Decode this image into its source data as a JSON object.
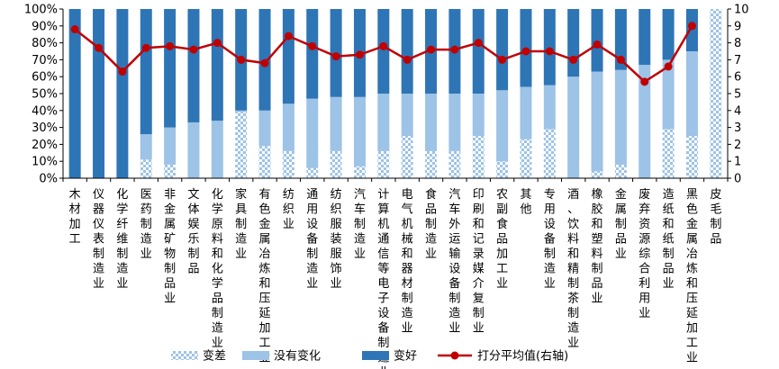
{
  "chart_data": {
    "type": "bar",
    "stacked": true,
    "y_left": {
      "ticks": [
        "0%",
        "10%",
        "20%",
        "30%",
        "40%",
        "50%",
        "60%",
        "70%",
        "80%",
        "90%",
        "100%"
      ],
      "lim": [
        0,
        100
      ]
    },
    "y_right": {
      "ticks": [
        "0",
        "1",
        "2",
        "3",
        "4",
        "5",
        "6",
        "7",
        "8",
        "9",
        "10"
      ],
      "lim": [
        0,
        10
      ]
    },
    "categories": [
      "木材加工",
      "仪器仪表制造业",
      "化学纤维制造业",
      "医药制造业",
      "非金属矿物制品业",
      "文体娱乐制品",
      "化学原料和化学品制造业",
      "家具制造业",
      "有色金属冶炼和压延加工业",
      "纺织业",
      "通用设备制造业",
      "纺织服装服饰业",
      "汽车制造业",
      "计算机通信等电子设备制造业",
      "电气机械和器材制造业",
      "食品制造业",
      "汽车外运输设备制造业",
      "印刷和记录媒介复制业",
      "农副食品加工业",
      "其他",
      "专用设备制造业",
      "酒、饮料和精制茶制造业",
      "橡胶和塑料制品业",
      "金属制品业",
      "废弃资源综合利用业",
      "造纸和纸制品业",
      "黑色金属冶炼和压延加工业",
      "皮毛制品"
    ],
    "series": [
      {
        "name": "变差",
        "color": "#9dc3e6",
        "pattern": "checker",
        "values": [
          0,
          0,
          0,
          11,
          8,
          0,
          0,
          39,
          19,
          16,
          6,
          16,
          7,
          16,
          25,
          16,
          16,
          25,
          10,
          23,
          29,
          0,
          4,
          8,
          0,
          29,
          25,
          100
        ]
      },
      {
        "name": "没有变化",
        "color": "#9dc3e6",
        "values": [
          0,
          0,
          0,
          15,
          22,
          33,
          34,
          1,
          21,
          28,
          41,
          32,
          41,
          34,
          25,
          34,
          34,
          25,
          42,
          31,
          26,
          60,
          59,
          56,
          67,
          41,
          50,
          0
        ]
      },
      {
        "name": "变好",
        "color": "#2e75b6",
        "values": [
          100,
          100,
          100,
          74,
          70,
          67,
          66,
          60,
          60,
          56,
          53,
          52,
          52,
          50,
          50,
          50,
          50,
          50,
          48,
          46,
          45,
          40,
          37,
          36,
          33,
          30,
          25,
          0
        ]
      }
    ],
    "line": {
      "name": "打分平均值(右轴)",
      "color": "#c00000",
      "values": [
        8.8,
        7.7,
        6.3,
        7.7,
        7.8,
        7.6,
        8.0,
        7.0,
        6.8,
        8.4,
        7.8,
        7.2,
        7.3,
        7.8,
        7.0,
        7.6,
        7.6,
        8.0,
        7.0,
        7.5,
        7.5,
        7.0,
        7.9,
        7.0,
        5.7,
        6.6,
        9.0,
        null
      ]
    },
    "legend": {
      "placement": "bottom",
      "items": [
        "变差",
        "没有变化",
        "变好",
        "打分平均值(右轴)"
      ]
    }
  }
}
